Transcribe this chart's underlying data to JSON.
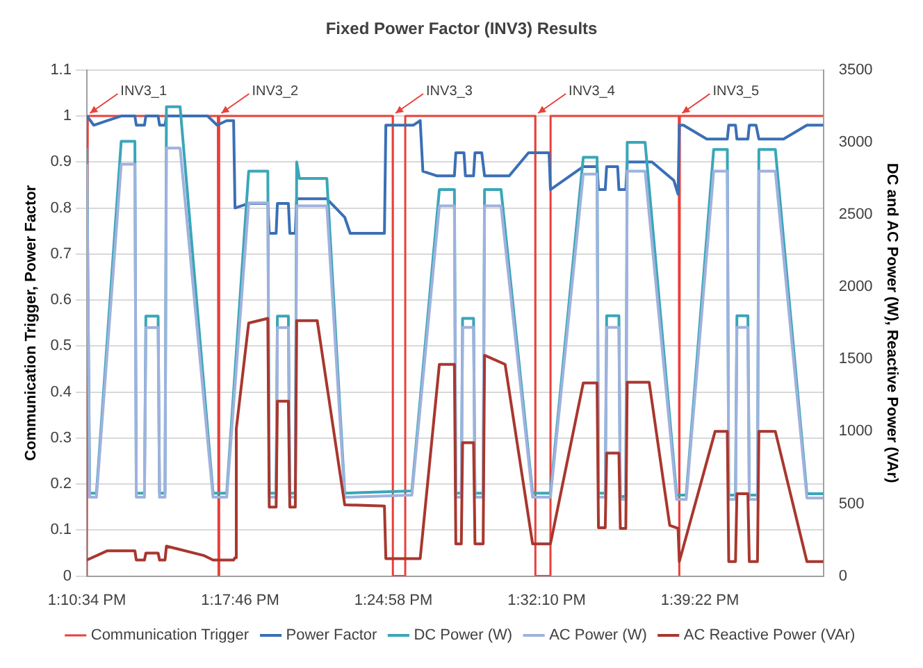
{
  "chart_data": {
    "type": "line",
    "title": "Fixed Power Factor (INV3) Results",
    "ylabel": "Communication Trigger, Power Factor",
    "y2label": "DC and AC Power (W), Reactive Power (VAr)",
    "xlim": [
      13.1761,
      13.7528
    ],
    "xticks": [
      {
        "value": 13.17611,
        "label": "1:10:34 PM"
      },
      {
        "value": 13.29611,
        "label": "1:17:46 PM"
      },
      {
        "value": 13.41611,
        "label": "1:24:58 PM"
      },
      {
        "value": 13.53611,
        "label": "1:32:10 PM"
      },
      {
        "value": 13.65611,
        "label": "1:39:22 PM"
      }
    ],
    "ylim": [
      0,
      1.1
    ],
    "yticks": [
      0,
      0.1,
      0.2,
      0.3,
      0.4,
      0.5,
      0.6,
      0.7,
      0.8,
      0.9,
      1,
      1.1
    ],
    "y2lim": [
      0,
      3500
    ],
    "y2ticks": [
      0,
      500,
      1000,
      1500,
      2000,
      2500,
      3000,
      3500
    ],
    "grid": "y",
    "legend": "bottom",
    "marker": "none",
    "line_style": "solid",
    "annotations": [
      {
        "text": "INV3_1",
        "x": 13.1763,
        "y": 1
      },
      {
        "text": "INV3_2",
        "x": 13.2792,
        "y": 1
      },
      {
        "text": "INV3_3",
        "x": 13.4156,
        "y": 1
      },
      {
        "text": "INV3_4",
        "x": 13.5272,
        "y": 1
      },
      {
        "text": "INV3_5",
        "x": 13.64,
        "y": 1
      }
    ],
    "series": [
      {
        "name": "Communication Trigger",
        "color": "#e8403a",
        "x": [
          13.1761,
          13.1768,
          13.2787,
          13.2792,
          13.2797,
          13.4156,
          13.4157,
          13.4253,
          13.4254,
          13.5272,
          13.5273,
          13.5391,
          13.5392,
          13.6396,
          13.64,
          13.6404,
          13.7528
        ],
        "values": [
          0,
          1,
          1,
          0,
          1,
          1,
          0,
          0,
          1,
          1,
          0,
          0,
          1,
          1,
          0,
          1,
          1
        ]
      },
      {
        "name": "Power Factor",
        "color": "#3b6fb6",
        "x": [
          13.1761,
          13.1815,
          13.1922,
          13.203,
          13.2137,
          13.2148,
          13.2212,
          13.2223,
          13.2319,
          13.233,
          13.2373,
          13.2384,
          13.2706,
          13.2781,
          13.2856,
          13.291,
          13.2921,
          13.3028,
          13.3178,
          13.3189,
          13.3243,
          13.3253,
          13.3339,
          13.335,
          13.3393,
          13.3404,
          13.364,
          13.378,
          13.3823,
          13.4091,
          13.4102,
          13.4317,
          13.4371,
          13.4392,
          13.45,
          13.4639,
          13.465,
          13.4714,
          13.4725,
          13.4789,
          13.48,
          13.4853,
          13.4875,
          13.5068,
          13.5219,
          13.538,
          13.5391,
          13.5648,
          13.5756,
          13.5767,
          13.582,
          13.5831,
          13.5917,
          13.5927,
          13.5981,
          13.5992,
          13.6186,
          13.6357,
          13.639,
          13.64,
          13.6432,
          13.6615,
          13.6776,
          13.6787,
          13.684,
          13.6851,
          13.6937,
          13.6948,
          13.7001,
          13.7023,
          13.7216,
          13.7399,
          13.7528
        ],
        "values": [
          1,
          0.98,
          0.99,
          1,
          1,
          0.98,
          0.98,
          1,
          1,
          0.98,
          0.98,
          1,
          1,
          0.98,
          0.99,
          0.99,
          0.8,
          0.81,
          0.81,
          0.745,
          0.745,
          0.81,
          0.81,
          0.745,
          0.745,
          0.82,
          0.82,
          0.78,
          0.745,
          0.745,
          0.98,
          0.98,
          0.99,
          0.88,
          0.87,
          0.87,
          0.92,
          0.92,
          0.87,
          0.87,
          0.92,
          0.92,
          0.87,
          0.87,
          0.92,
          0.92,
          0.84,
          0.89,
          0.89,
          0.84,
          0.84,
          0.89,
          0.89,
          0.84,
          0.84,
          0.9,
          0.9,
          0.86,
          0.83,
          0.98,
          0.98,
          0.95,
          0.95,
          0.98,
          0.98,
          0.95,
          0.95,
          0.98,
          0.98,
          0.95,
          0.95,
          0.98,
          0.98
        ]
      },
      {
        "name": "DC Power (W)",
        "color": "#3aa6b8",
        "axis": "y2",
        "x": [
          13.1761,
          13.1783,
          13.1836,
          13.203,
          13.2137,
          13.2148,
          13.2212,
          13.2223,
          13.2319,
          13.233,
          13.2373,
          13.2384,
          13.2491,
          13.2749,
          13.2856,
          13.3028,
          13.3178,
          13.3189,
          13.3243,
          13.3253,
          13.3339,
          13.335,
          13.3393,
          13.3404,
          13.3425,
          13.364,
          13.378,
          13.4306,
          13.4521,
          13.4639,
          13.465,
          13.4693,
          13.4703,
          13.4789,
          13.48,
          13.4864,
          13.4875,
          13.5004,
          13.5251,
          13.5391,
          13.5648,
          13.5756,
          13.5767,
          13.582,
          13.5831,
          13.5927,
          13.5938,
          13.5981,
          13.5992,
          13.6132,
          13.6379,
          13.6454,
          13.6669,
          13.6776,
          13.6787,
          13.684,
          13.6851,
          13.6937,
          13.6948,
          13.7012,
          13.7023,
          13.7152,
          13.7399,
          13.7528
        ],
        "values": [
          2960,
          573,
          573,
          3007,
          3007,
          573,
          573,
          1798,
          1798,
          573,
          573,
          3246,
          3246,
          573,
          573,
          2800,
          2800,
          573,
          573,
          1798,
          1798,
          573,
          573,
          2864,
          2750,
          2750,
          573,
          589,
          2673,
          2673,
          573,
          573,
          1782,
          1782,
          573,
          573,
          2673,
          2673,
          573,
          573,
          2896,
          2896,
          573,
          573,
          1800,
          1800,
          550,
          550,
          3000,
          3000,
          560,
          560,
          2950,
          2950,
          560,
          560,
          1800,
          1800,
          560,
          560,
          2950,
          2950,
          570,
          570
        ]
      },
      {
        "name": "AC Power (W)",
        "color": "#9fb2dd",
        "axis": "y2",
        "x": [
          13.1761,
          13.1783,
          13.1836,
          13.203,
          13.2137,
          13.2148,
          13.2212,
          13.2223,
          13.2319,
          13.233,
          13.2373,
          13.2384,
          13.2491,
          13.2749,
          13.2856,
          13.3028,
          13.3178,
          13.3189,
          13.3243,
          13.3253,
          13.3339,
          13.335,
          13.3393,
          13.3404,
          13.364,
          13.378,
          13.4306,
          13.4521,
          13.4639,
          13.465,
          13.4693,
          13.4703,
          13.4789,
          13.48,
          13.4864,
          13.4875,
          13.5004,
          13.5251,
          13.5391,
          13.5648,
          13.5756,
          13.5767,
          13.582,
          13.5831,
          13.5927,
          13.5938,
          13.5981,
          13.5992,
          13.6132,
          13.6379,
          13.6454,
          13.6669,
          13.6776,
          13.6787,
          13.684,
          13.6851,
          13.6937,
          13.6948,
          13.7012,
          13.7023,
          13.7152,
          13.7399,
          13.7528
        ],
        "values": [
          2850,
          545,
          545,
          2848,
          2848,
          545,
          545,
          1718,
          1718,
          545,
          545,
          2960,
          2960,
          545,
          545,
          2580,
          2580,
          545,
          545,
          1718,
          1718,
          545,
          545,
          2560,
          2560,
          545,
          560,
          2560,
          2560,
          545,
          545,
          1720,
          1720,
          545,
          545,
          2560,
          2560,
          545,
          545,
          2780,
          2780,
          545,
          545,
          1720,
          1720,
          530,
          530,
          2800,
          2800,
          530,
          530,
          2800,
          2800,
          530,
          530,
          1720,
          1720,
          530,
          530,
          2800,
          2800,
          540,
          540
        ]
      },
      {
        "name": "AC Reactive Power (VAr)",
        "color": "#a8372f",
        "axis": "y2",
        "x": [
          13.1761,
          13.1922,
          13.2137,
          13.2148,
          13.2212,
          13.2223,
          13.2319,
          13.233,
          13.2373,
          13.2384,
          13.2674,
          13.2749,
          13.291,
          13.2921,
          13.2931,
          13.3028,
          13.3178,
          13.3189,
          13.3243,
          13.3253,
          13.3339,
          13.335,
          13.3393,
          13.3404,
          13.3565,
          13.378,
          13.4091,
          13.4102,
          13.4371,
          13.4521,
          13.4639,
          13.465,
          13.4693,
          13.4703,
          13.4789,
          13.48,
          13.4864,
          13.4875,
          13.5036,
          13.5251,
          13.5391,
          13.5648,
          13.5756,
          13.5767,
          13.582,
          13.5831,
          13.5927,
          13.5938,
          13.5981,
          13.5992,
          13.6164,
          13.6325,
          13.639,
          13.64,
          13.668,
          13.6776,
          13.6787,
          13.684,
          13.6851,
          13.6937,
          13.6948,
          13.7012,
          13.7023,
          13.7152,
          13.7399,
          13.7528
        ],
        "values": [
          111,
          175,
          175,
          111,
          111,
          159,
          159,
          111,
          111,
          207,
          143,
          111,
          111,
          127,
          1018,
          1750,
          1782,
          477,
          477,
          1209,
          1209,
          477,
          477,
          1766,
          1766,
          493,
          484,
          121,
          121,
          1464,
          1464,
          223,
          223,
          923,
          923,
          223,
          223,
          1527,
          1464,
          223,
          223,
          1336,
          1336,
          334,
          334,
          850,
          850,
          330,
          330,
          1340,
          1340,
          350,
          330,
          100,
          1000,
          1000,
          100,
          100,
          570,
          570,
          100,
          100,
          1000,
          1000,
          100,
          100
        ]
      }
    ]
  }
}
